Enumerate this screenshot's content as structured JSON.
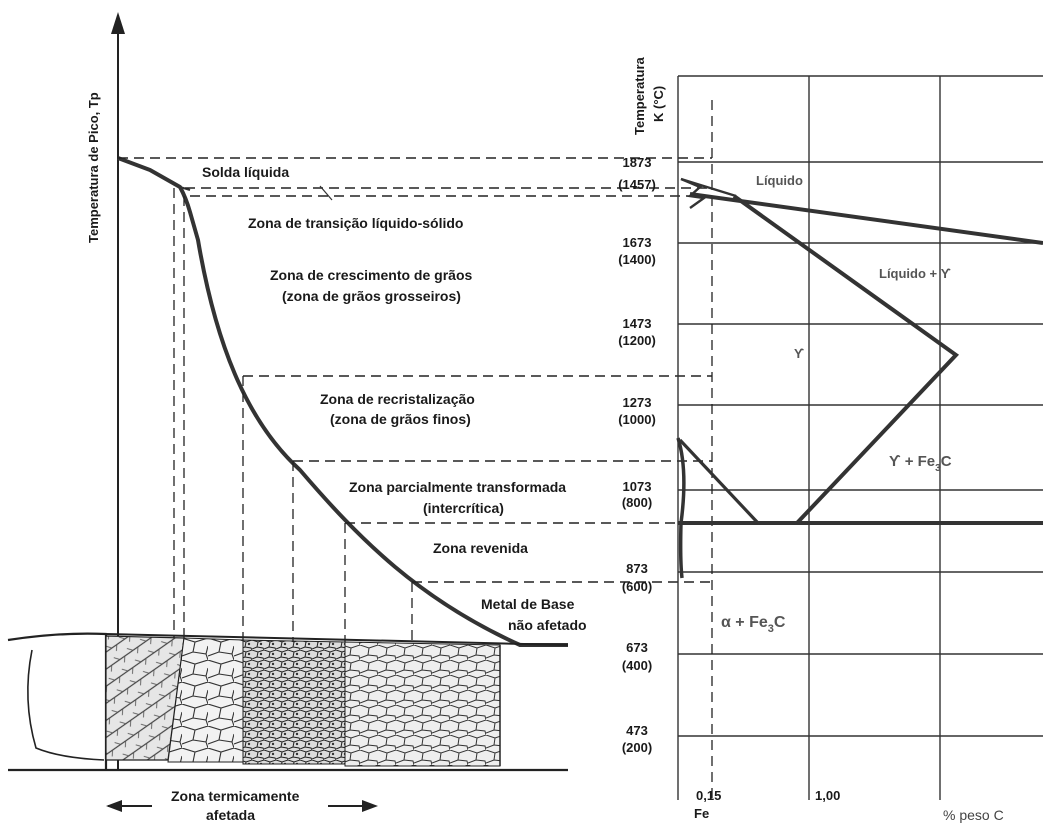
{
  "left_axis": {
    "label": "Temperatura de Pico, Tp"
  },
  "zones": [
    {
      "line1": "Solda líquida",
      "line2": ""
    },
    {
      "line1": "Zona de transição líquido-sólido",
      "line2": ""
    },
    {
      "line1": "Zona de crescimento de grãos",
      "line2": "(zona de grãos grosseiros)"
    },
    {
      "line1": "Zona de recristalização",
      "line2": "(zona de grãos finos)"
    },
    {
      "line1": "Zona parcialmente transformada",
      "line2": "(intercrítica)"
    },
    {
      "line1": "Zona revenida",
      "line2": ""
    },
    {
      "line1": "Metal de Base",
      "line2": "não afetado"
    }
  ],
  "bottom_caption": {
    "line1": "Zona termicamente",
    "line2": "afetada"
  },
  "right_axis": {
    "label_line1": "Temperatura",
    "label_line2": "K (°C)"
  },
  "temperature_ticks": [
    {
      "k": "1873",
      "c": ""
    },
    {
      "k": "",
      "c": "(1457)"
    },
    {
      "k": "1673",
      "c": "(1400)"
    },
    {
      "k": "1473",
      "c": "(1200)"
    },
    {
      "k": "1273",
      "c": "(1000)"
    },
    {
      "k": "1073",
      "c": "(800)"
    },
    {
      "k": "873",
      "c": "(600)"
    },
    {
      "k": "673",
      "c": "(400)"
    },
    {
      "k": "473",
      "c": "(200)"
    }
  ],
  "x_axis": {
    "fe": "Fe",
    "t1": "0,15",
    "t2": "1,00",
    "label": "% peso C"
  },
  "phase_labels": {
    "liquid": "Líquido",
    "liquid_gamma": "Líquido + ϒ",
    "gamma": "ϒ",
    "gamma_fe3c_a": "ϒ + Fe",
    "gamma_fe3c_sub": "3",
    "gamma_fe3c_b": "C",
    "alpha_fe3c_a": "α + Fe",
    "alpha_fe3c_sub": "3",
    "alpha_fe3c_b": "C"
  }
}
